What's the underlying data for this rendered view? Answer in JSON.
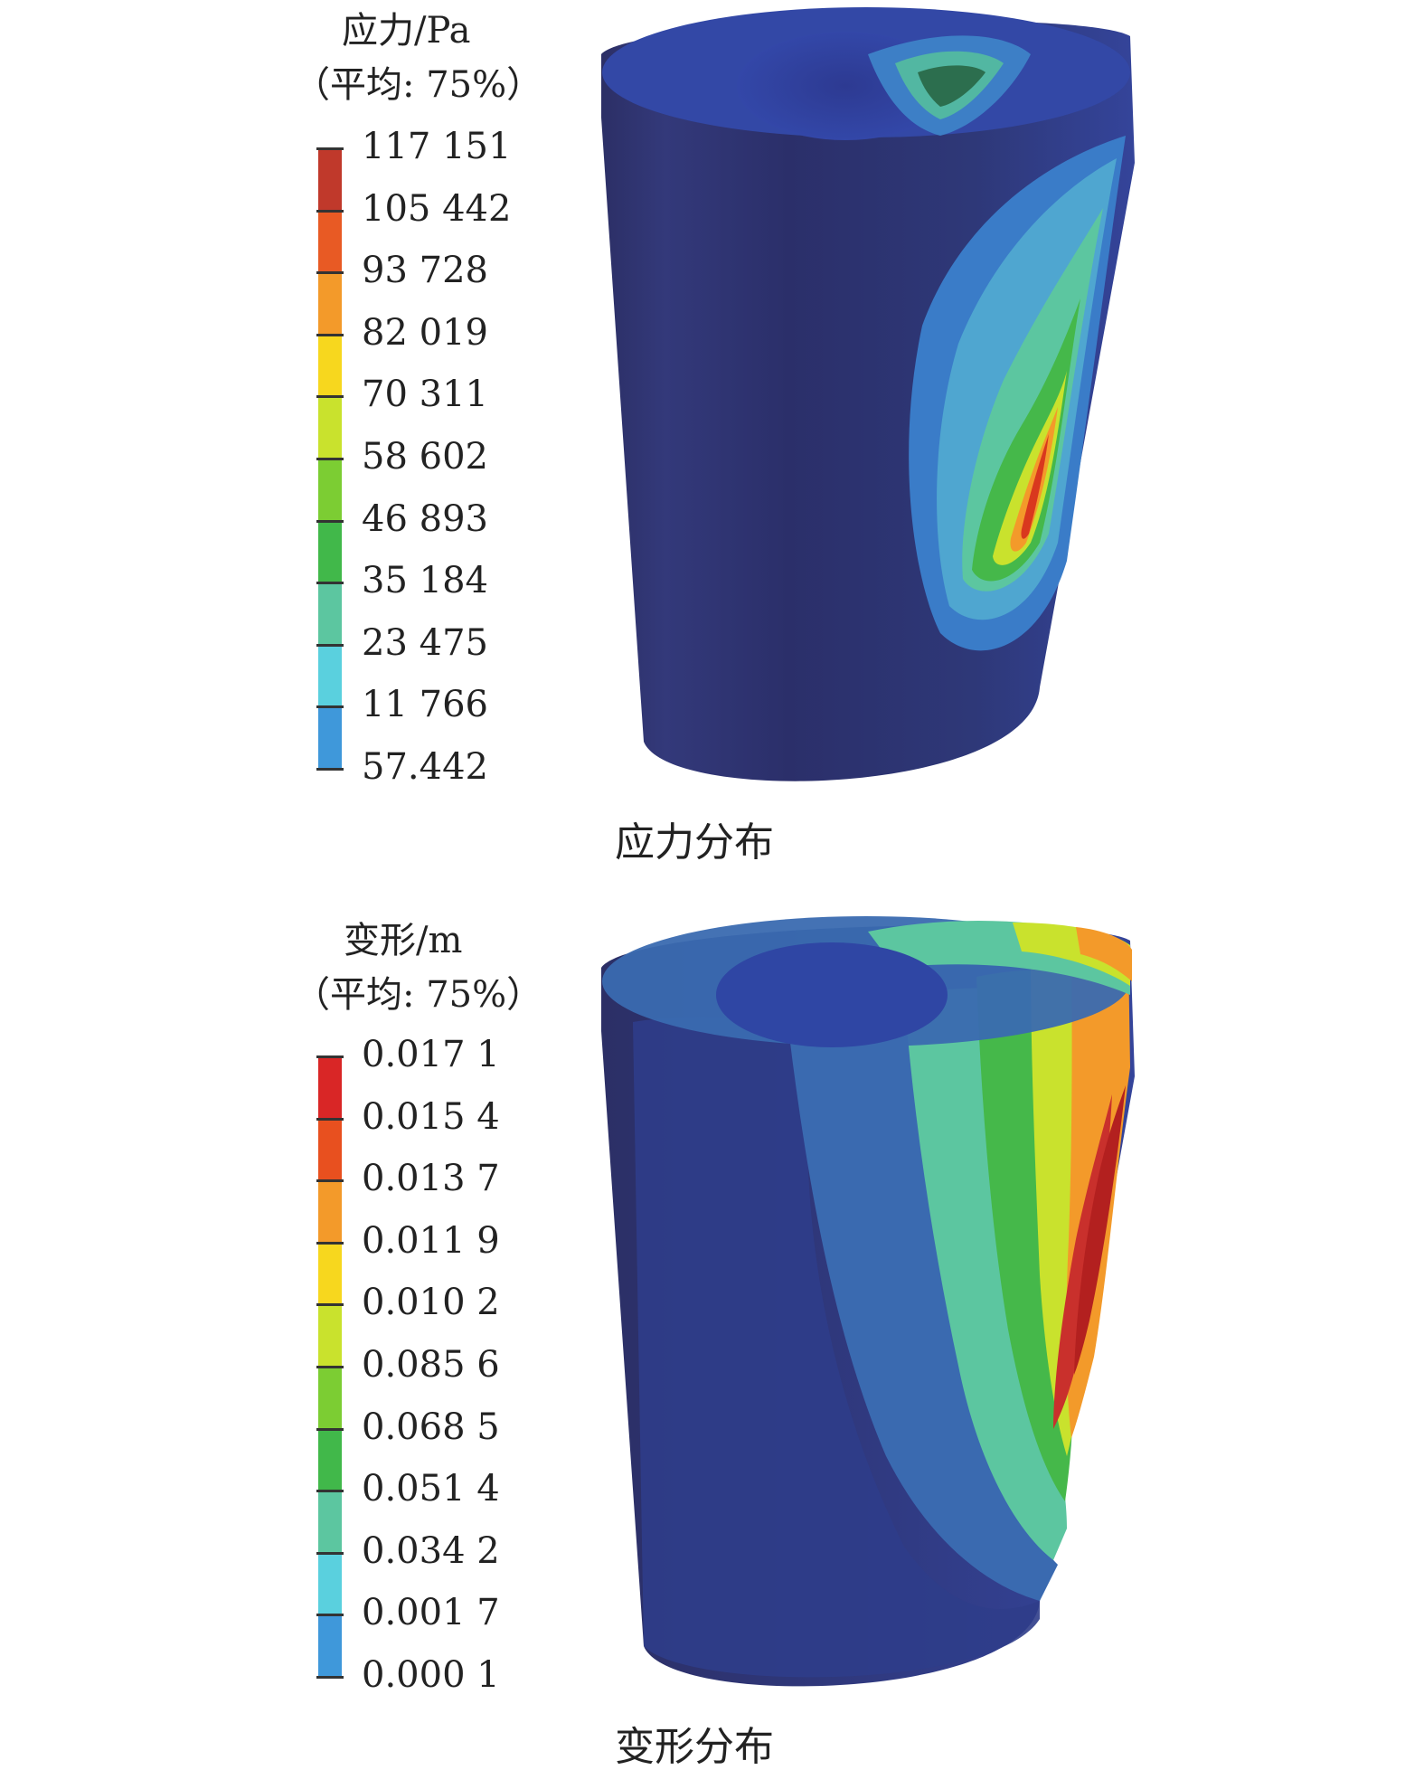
{
  "panels": [
    {
      "legend_title_1": "应力/Pa",
      "legend_title_2": "（平均: 75%）",
      "tick_labels": [
        "117 151",
        "105 442",
        "93 728",
        "82 019",
        "70 311",
        "58 602",
        "46 893",
        "35 184",
        "23 475",
        "11 766",
        "57.442"
      ],
      "colors": [
        "#c0392b",
        "#e85a24",
        "#f39a2a",
        "#f7d71e",
        "#c9e22d",
        "#7ccd33",
        "#41b84a",
        "#5cc6a0",
        "#5ad0de",
        "#3f98da",
        "#2b4fb6",
        "#243b9a"
      ],
      "caption": "应力分布"
    },
    {
      "legend_title_1": "变形/m",
      "legend_title_2": "（平均: 75%）",
      "tick_labels": [
        "0.017 1",
        "0.015 4",
        "0.013 7",
        "0.011 9",
        "0.010 2",
        "0.085 6",
        "0.068 5",
        "0.051 4",
        "0.034 2",
        "0.001 7",
        "0.000 1"
      ],
      "colors": [
        "#d92626",
        "#e8501f",
        "#f39a2a",
        "#f7d71e",
        "#c9e22d",
        "#7ccd33",
        "#41b84a",
        "#5cc6a0",
        "#5ad0de",
        "#3f98da",
        "#2b4fb6",
        "#243b9a"
      ],
      "caption": "变形分布"
    }
  ]
}
